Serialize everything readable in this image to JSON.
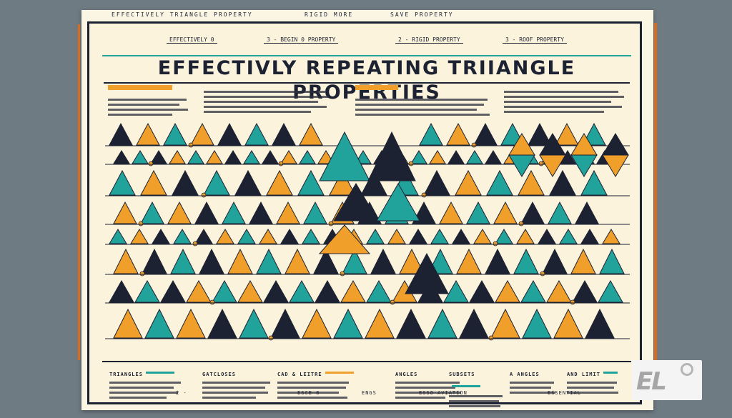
{
  "poster": {
    "top_strip": [
      "EFFECTIVELY TRIANGLE PROPERTY",
      "RIGID MORE",
      "SAVE PROPERTY"
    ],
    "header_tabs": [
      "EFFECTIVELY 0",
      "3 - BEGIN 0 PROPERTY",
      "2 - RIGID PROPERTY",
      "3 - ROOF PROPERTY"
    ],
    "title": "EFFECTIVLY REPEATING TRIIANGLE PROPERTIES",
    "footer_labels": [
      "TRIANGLES",
      "GATCLOSES",
      "CAD & LEITRE",
      "ANGLES",
      "SUBSETS",
      "A ANGLES",
      "AND LIMIT"
    ],
    "bottom_strip": [
      "2 - ",
      "ESCE 8",
      "ENGS",
      "ESSO AVIATION",
      "ESSENTIAL"
    ]
  },
  "logo": {
    "text": "EL"
  },
  "colors": {
    "teal": "#21a29a",
    "orange": "#f0a02a",
    "navy": "#1d2233",
    "cream": "#fbf3dc"
  }
}
